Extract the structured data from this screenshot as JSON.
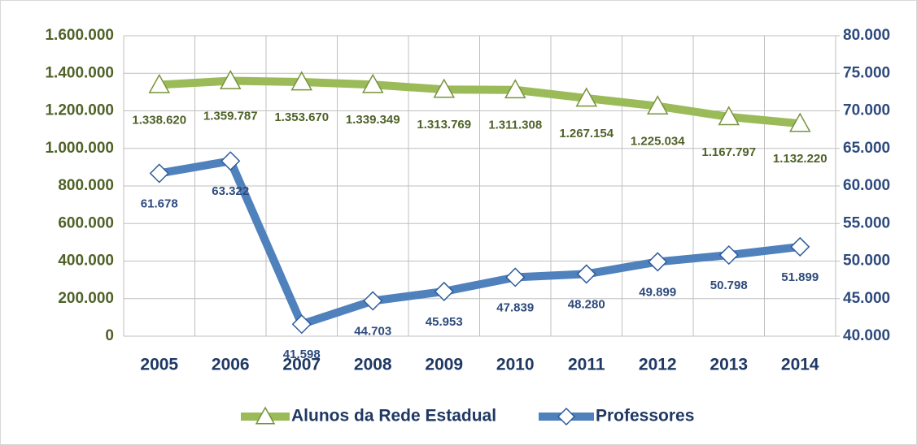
{
  "chart_data": {
    "type": "line",
    "categories": [
      "2005",
      "2006",
      "2007",
      "2008",
      "2009",
      "2010",
      "2011",
      "2012",
      "2013",
      "2014"
    ],
    "series": [
      {
        "name": "Alunos da Rede Estadual",
        "color": "#9bbb59",
        "label_color": "#4f6228",
        "values": [
          1338620,
          1359787,
          1353670,
          1339349,
          1313769,
          1311308,
          1267154,
          1225034,
          1167797,
          1132220
        ],
        "value_labels": [
          "1.338.620",
          "1.359.787",
          "1.353.670",
          "1.339.349",
          "1.313.769",
          "1.311.308",
          "1.267.154",
          "1.225.034",
          "1.167.797",
          "1.132.220"
        ]
      },
      {
        "name": "Professores",
        "color": "#4f81bd",
        "label_color": "#2e4a7d",
        "axis": "y2",
        "values": [
          61678,
          63322,
          41598,
          44703,
          45953,
          47839,
          48280,
          49899,
          50798,
          51899
        ],
        "value_labels": [
          "61.678",
          "63.322",
          "41.598",
          "44.703",
          "45.953",
          "47.839",
          "48.280",
          "49.899",
          "50.798",
          "51.899"
        ]
      }
    ],
    "ylim": [
      0,
      1600000
    ],
    "yticks": [
      0,
      {
        "value": 200000,
        "label": "200.000"
      },
      {
        "value": 400000,
        "label": "400.000"
      },
      {
        "value": 600000,
        "label": "600.000"
      },
      {
        "value": 800000,
        "label": "800.000"
      },
      {
        "value": 1000000,
        "label": "1.000.000"
      },
      {
        "value": 1200000,
        "label": "1.200.000"
      },
      {
        "value": 1400000,
        "label": "1.400.000"
      },
      {
        "value": 1600000,
        "label": "1.600.000"
      }
    ],
    "y2lim": [
      40000,
      80000
    ],
    "y2ticks": [
      {
        "value": 40000,
        "label": "40.000"
      },
      {
        "value": 45000,
        "label": "45.000"
      },
      {
        "value": 50000,
        "label": "50.000"
      },
      {
        "value": 55000,
        "label": "55.000"
      },
      {
        "value": 60000,
        "label": "60.000"
      },
      {
        "value": 65000,
        "label": "65.000"
      },
      {
        "value": 70000,
        "label": "70.000"
      },
      {
        "value": 75000,
        "label": "75.000"
      },
      {
        "value": 80000,
        "label": "80.000"
      }
    ],
    "grid": true,
    "legend": "bottom"
  }
}
